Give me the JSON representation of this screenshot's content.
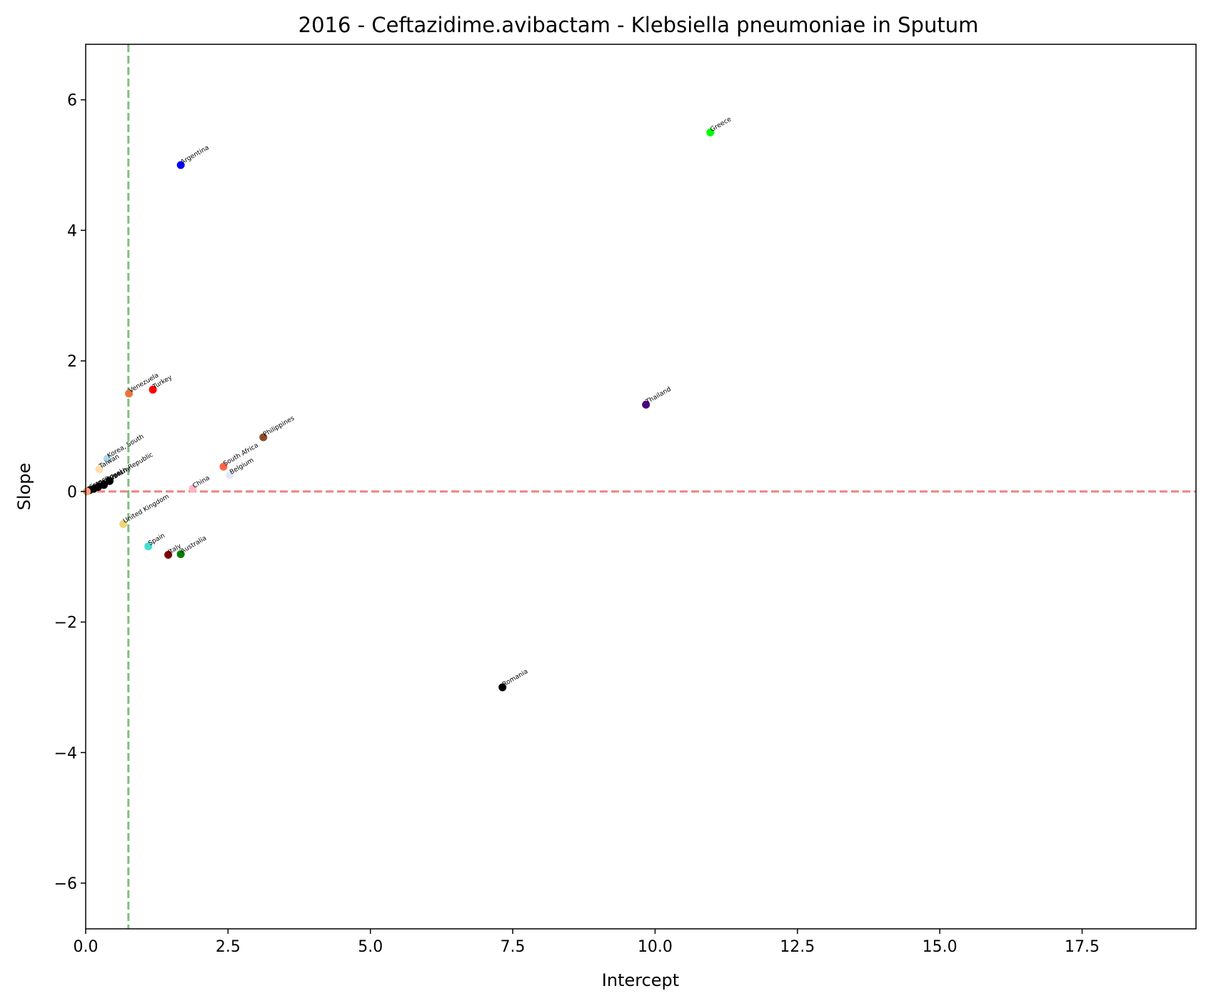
{
  "chart_data": {
    "type": "scatter",
    "title": "2016 - Ceftazidime.avibactam - Klebsiella pneumoniae in Sputum",
    "xlabel": "Intercept",
    "ylabel": "Slope",
    "xlim": [
      0,
      19.5
    ],
    "ylim": [
      -6.7,
      6.85
    ],
    "xticks": [
      0.0,
      2.5,
      5.0,
      7.5,
      10.0,
      12.5,
      15.0,
      17.5
    ],
    "xtick_labels": [
      "0.0",
      "2.5",
      "5.0",
      "7.5",
      "10.0",
      "12.5",
      "15.0",
      "17.5"
    ],
    "yticks": [
      -6,
      -4,
      -2,
      0,
      2,
      4,
      6
    ],
    "ytick_labels": [
      "−6",
      "−4",
      "−2",
      "0",
      "2",
      "4",
      "6"
    ],
    "grid": false,
    "reference_lines": [
      {
        "orientation": "horizontal",
        "value": 0,
        "color": "#f08080",
        "style": "dashed"
      },
      {
        "orientation": "vertical",
        "value": 0.75,
        "color": "#7fbf7f",
        "style": "dashed"
      }
    ],
    "points": [
      {
        "label": "Greece",
        "x": 10.97,
        "y": 5.5,
        "color": "#00ff00"
      },
      {
        "label": "Argentina",
        "x": 1.67,
        "y": 5.0,
        "color": "#0000ff"
      },
      {
        "label": "Thailand",
        "x": 9.84,
        "y": 1.33,
        "color": "#4b0082"
      },
      {
        "label": "Venezuela",
        "x": 0.76,
        "y": 1.5,
        "color": "#e8743b"
      },
      {
        "label": "Turkey",
        "x": 1.18,
        "y": 1.56,
        "color": "#ff0000"
      },
      {
        "label": "Philippines",
        "x": 3.12,
        "y": 0.83,
        "color": "#8b4a2b"
      },
      {
        "label": "Korea, South",
        "x": 0.38,
        "y": 0.5,
        "color": "#add8e6"
      },
      {
        "label": "Taiwan",
        "x": 0.24,
        "y": 0.34,
        "color": "#ffdead"
      },
      {
        "label": "South Africa",
        "x": 2.42,
        "y": 0.38,
        "color": "#ff6347"
      },
      {
        "label": "Belgium",
        "x": 2.53,
        "y": 0.25,
        "color": "#e6e6fa"
      },
      {
        "label": "China",
        "x": 1.88,
        "y": 0.04,
        "color": "#ffb6c1"
      },
      {
        "label": "Czech Republic",
        "x": 0.42,
        "y": 0.16,
        "color": "#000000"
      },
      {
        "label": "Germany",
        "x": 0.32,
        "y": 0.1,
        "color": "#000000"
      },
      {
        "label": "Portugal",
        "x": 0.22,
        "y": 0.07,
        "color": "#000000"
      },
      {
        "label": "Mexico",
        "x": 0.14,
        "y": 0.04,
        "color": "#000000"
      },
      {
        "label": "France",
        "x": 0.07,
        "y": 0.02,
        "color": "#000000"
      },
      {
        "label": "",
        "x": 0.02,
        "y": 0.0,
        "color": "#ffa07a"
      },
      {
        "label": "United Kingdom",
        "x": 0.66,
        "y": -0.5,
        "color": "#f0d67a"
      },
      {
        "label": "Spain",
        "x": 1.1,
        "y": -0.84,
        "color": "#40e0d0"
      },
      {
        "label": "Italy",
        "x": 1.45,
        "y": -0.97,
        "color": "#800000"
      },
      {
        "label": "Australia",
        "x": 1.67,
        "y": -0.96,
        "color": "#008000"
      },
      {
        "label": "Romania",
        "x": 7.32,
        "y": -3.0,
        "color": "#000000"
      }
    ]
  }
}
